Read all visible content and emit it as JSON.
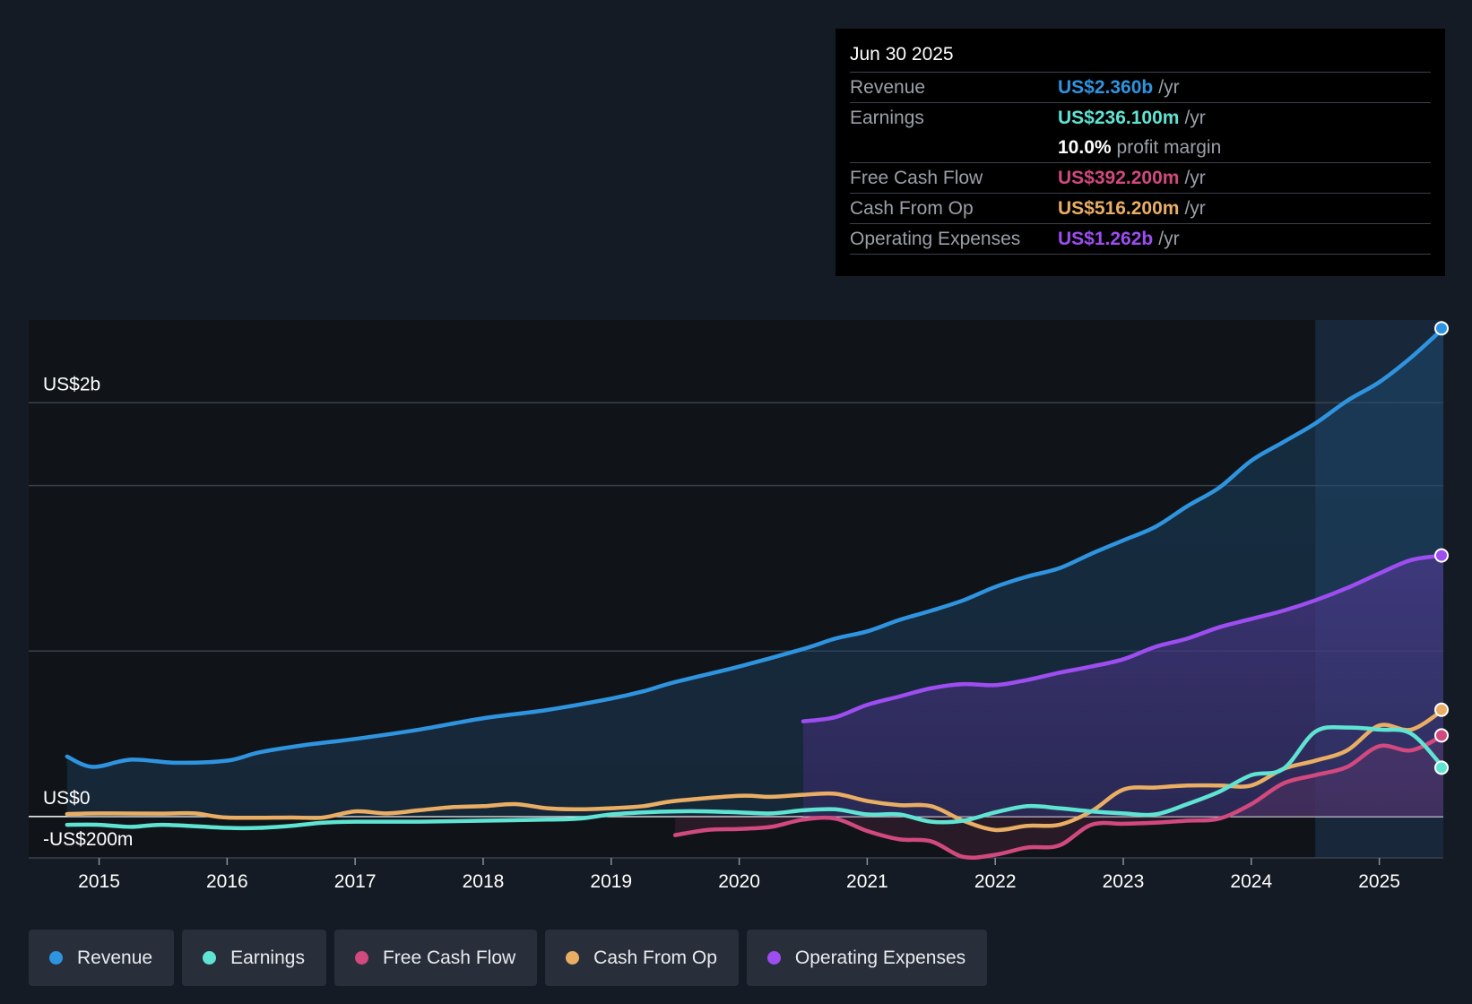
{
  "tooltip": {
    "date": "Jun 30 2025",
    "rows": [
      {
        "label": "Revenue",
        "value": "US$2.360b",
        "unit": "/yr",
        "color": "#2f94e0"
      },
      {
        "label": "Earnings",
        "value": "US$236.100m",
        "unit": "/yr",
        "color": "#5fe3d3"
      },
      {
        "label": "",
        "value": "10.0%",
        "unit": "profit margin",
        "color": "#ffffff"
      },
      {
        "label": "Free Cash Flow",
        "value": "US$392.200m",
        "unit": "/yr",
        "color": "#d1497e"
      },
      {
        "label": "Cash From Op",
        "value": "US$516.200m",
        "unit": "/yr",
        "color": "#e9ae64"
      },
      {
        "label": "Operating Expenses",
        "value": "US$1.262b",
        "unit": "/yr",
        "color": "#9d4df0"
      }
    ]
  },
  "legend": [
    {
      "label": "Revenue",
      "color": "#2f94e0"
    },
    {
      "label": "Earnings",
      "color": "#5fe3d3"
    },
    {
      "label": "Free Cash Flow",
      "color": "#d1497e"
    },
    {
      "label": "Cash From Op",
      "color": "#e9ae64"
    },
    {
      "label": "Operating Expenses",
      "color": "#9d4df0"
    }
  ],
  "chart_data": {
    "type": "area",
    "y_unit": "US$ m",
    "ylim": [
      -200,
      2400
    ],
    "xlim": [
      2014.45,
      2025.5
    ],
    "y_axis_labels": [
      {
        "value": 2000,
        "label": "US$2b"
      },
      {
        "value": 0,
        "label": "US$0"
      },
      {
        "value": -200,
        "label": "-US$200m"
      }
    ],
    "x_ticks": [
      2015,
      2016,
      2017,
      2018,
      2019,
      2020,
      2021,
      2022,
      2023,
      2024,
      2025
    ],
    "grid": true,
    "highlight_from": 2024.5,
    "series": [
      {
        "name": "Revenue",
        "color": "#2f94e0",
        "fill": true,
        "x": [
          2014.75,
          2014.95,
          2015.25,
          2015.6,
          2016.0,
          2016.25,
          2016.6,
          2017.0,
          2017.5,
          2018.0,
          2018.5,
          2019.0,
          2019.25,
          2019.5,
          2020.0,
          2020.5,
          2020.75,
          2021.0,
          2021.25,
          2021.5,
          2021.75,
          2022.0,
          2022.25,
          2022.5,
          2022.75,
          2023.0,
          2023.25,
          2023.5,
          2023.75,
          2024.0,
          2024.25,
          2024.5,
          2024.75,
          2025.0,
          2025.25,
          2025.5
        ],
        "y": [
          290,
          240,
          275,
          260,
          270,
          310,
          345,
          375,
          420,
          475,
          515,
          570,
          605,
          650,
          725,
          810,
          860,
          895,
          950,
          995,
          1045,
          1110,
          1160,
          1200,
          1270,
          1335,
          1400,
          1500,
          1590,
          1720,
          1810,
          1900,
          2010,
          2100,
          2220,
          2360
        ]
      },
      {
        "name": "Operating Expenses",
        "color": "#9d4df0",
        "fill": true,
        "x": [
          2020.5,
          2020.75,
          2021.0,
          2021.25,
          2021.5,
          2021.75,
          2022.0,
          2022.25,
          2022.5,
          2022.75,
          2023.0,
          2023.25,
          2023.5,
          2023.75,
          2024.0,
          2024.25,
          2024.5,
          2024.75,
          2025.0,
          2025.25,
          2025.5
        ],
        "y": [
          460,
          480,
          540,
          580,
          620,
          640,
          635,
          660,
          695,
          725,
          760,
          820,
          860,
          915,
          955,
          995,
          1045,
          1105,
          1175,
          1240,
          1262
        ]
      },
      {
        "name": "Cash From Op",
        "color": "#e9ae64",
        "fill": false,
        "x": [
          2014.75,
          2015.0,
          2015.5,
          2015.75,
          2016.0,
          2016.5,
          2016.75,
          2017.0,
          2017.25,
          2017.5,
          2017.75,
          2018.0,
          2018.25,
          2018.5,
          2018.75,
          2019.0,
          2019.25,
          2019.5,
          2020.0,
          2020.25,
          2020.5,
          2020.75,
          2021.0,
          2021.25,
          2021.5,
          2021.75,
          2022.0,
          2022.25,
          2022.5,
          2022.75,
          2023.0,
          2023.25,
          2023.5,
          2023.75,
          2024.0,
          2024.25,
          2024.5,
          2024.75,
          2025.0,
          2025.25,
          2025.5
        ],
        "y": [
          12,
          15,
          14,
          15,
          -5,
          -5,
          -5,
          25,
          15,
          30,
          45,
          50,
          60,
          40,
          35,
          40,
          50,
          75,
          100,
          95,
          105,
          110,
          75,
          55,
          50,
          -20,
          -65,
          -45,
          -40,
          25,
          130,
          140,
          150,
          150,
          150,
          230,
          270,
          320,
          440,
          420,
          516
        ]
      },
      {
        "name": "Free Cash Flow",
        "color": "#d1497e",
        "fill": false,
        "x": [
          2019.5,
          2019.75,
          2020.0,
          2020.25,
          2020.5,
          2020.75,
          2021.0,
          2021.25,
          2021.5,
          2021.75,
          2022.0,
          2022.25,
          2022.5,
          2022.75,
          2023.0,
          2023.25,
          2023.5,
          2023.75,
          2024.0,
          2024.25,
          2024.5,
          2024.75,
          2025.0,
          2025.25,
          2025.5
        ],
        "y": [
          -90,
          -65,
          -60,
          -50,
          -15,
          -10,
          -70,
          -110,
          -120,
          -195,
          -185,
          -150,
          -140,
          -40,
          -35,
          -30,
          -20,
          -10,
          60,
          160,
          200,
          240,
          340,
          320,
          392
        ]
      },
      {
        "name": "Earnings",
        "color": "#5fe3d3",
        "fill": false,
        "x": [
          2014.75,
          2015.0,
          2015.25,
          2015.5,
          2016.0,
          2016.25,
          2016.5,
          2016.75,
          2017.0,
          2017.5,
          2018.0,
          2018.5,
          2018.75,
          2019.0,
          2019.25,
          2019.5,
          2019.75,
          2020.0,
          2020.25,
          2020.5,
          2020.75,
          2021.0,
          2021.25,
          2021.5,
          2021.75,
          2022.0,
          2022.25,
          2022.5,
          2022.75,
          2023.0,
          2023.25,
          2023.5,
          2023.75,
          2024.0,
          2024.25,
          2024.5,
          2024.75,
          2025.0,
          2025.25,
          2025.5
        ],
        "y": [
          -40,
          -40,
          -50,
          -40,
          -55,
          -55,
          -45,
          -30,
          -25,
          -25,
          -20,
          -15,
          -10,
          10,
          20,
          25,
          25,
          20,
          15,
          30,
          35,
          10,
          10,
          -25,
          -20,
          20,
          50,
          40,
          25,
          15,
          10,
          60,
          120,
          200,
          230,
          410,
          430,
          420,
          400,
          236
        ]
      }
    ]
  }
}
